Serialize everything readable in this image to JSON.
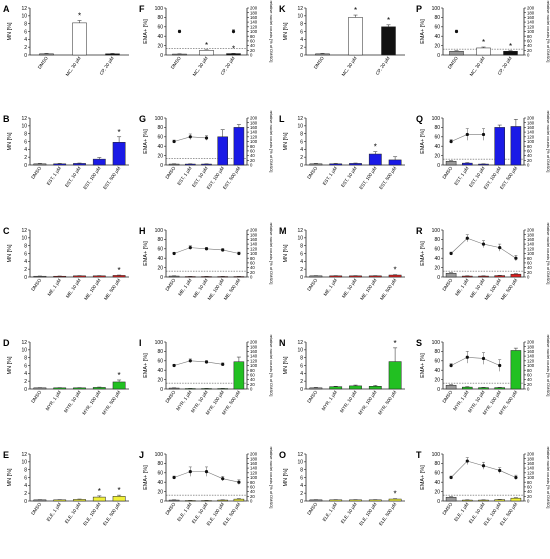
{
  "figure": {
    "mn_ylabel": "MN [%]",
    "ema_ylabel": "EMA+ [%]",
    "right_ylabel": "relative nuclei counts [% of DMSO]",
    "mn_ticks": [
      0,
      2,
      4,
      6,
      8,
      10,
      12
    ],
    "ema_ticks": [
      0,
      20,
      40,
      60,
      80,
      100
    ],
    "right_ticks": [
      0,
      20,
      40,
      60,
      80,
      100,
      120,
      140,
      160,
      180,
      200
    ],
    "colors": {
      "blue": "#1a1ae6",
      "red": "#e02020",
      "green": "#22c022",
      "yellow": "#f0f03a",
      "black": "#111111",
      "white": "#ffffff",
      "dmso": "#9a9a9a",
      "axis": "#222222"
    }
  },
  "chart_data": [
    {
      "panel": "A",
      "type": "bar",
      "metric": "MN",
      "categories": [
        "DMSO",
        "MC, 30 µM",
        "CP, 20 µM"
      ],
      "values": [
        0.3,
        8.2,
        0.3
      ],
      "errors": [
        0.1,
        0.6,
        0.1
      ],
      "colors": [
        "dmso",
        "white",
        "black"
      ],
      "stars": [
        1
      ],
      "ylim": [
        0,
        12
      ]
    },
    {
      "panel": "B",
      "type": "bar",
      "metric": "MN",
      "categories": [
        "DMSO",
        "EST, 1 µM",
        "EST, 10 µM",
        "EST, 100 µM",
        "EST, 500 µM"
      ],
      "values": [
        0.3,
        0.3,
        0.4,
        1.5,
        5.8
      ],
      "errors": [
        0.1,
        0.1,
        0.1,
        0.4,
        1.4
      ],
      "colors": [
        "dmso",
        "blue",
        "blue",
        "blue",
        "blue"
      ],
      "stars": [
        4
      ],
      "ylim": [
        0,
        12
      ]
    },
    {
      "panel": "C",
      "type": "bar",
      "metric": "MN",
      "categories": [
        "DMSO",
        "ME, 1 µM",
        "ME, 10 µM",
        "ME, 100 µM",
        "ME, 500 µM"
      ],
      "values": [
        0.2,
        0.2,
        0.3,
        0.3,
        0.4
      ],
      "errors": [
        0.05,
        0.05,
        0.05,
        0.05,
        0.1
      ],
      "colors": [
        "dmso",
        "red",
        "red",
        "red",
        "red"
      ],
      "stars": [
        4
      ],
      "ylim": [
        0,
        12
      ]
    },
    {
      "panel": "D",
      "type": "bar",
      "metric": "MN",
      "categories": [
        "DMSO",
        "MYR, 1 µM",
        "MYR, 10 µM",
        "MYR, 100 µM",
        "MYR, 500 µM"
      ],
      "values": [
        0.3,
        0.3,
        0.3,
        0.4,
        1.8
      ],
      "errors": [
        0.05,
        0.05,
        0.05,
        0.1,
        0.5
      ],
      "colors": [
        "dmso",
        "green",
        "green",
        "green",
        "green"
      ],
      "stars": [
        4
      ],
      "ylim": [
        0,
        12
      ]
    },
    {
      "panel": "E",
      "type": "bar",
      "metric": "MN",
      "categories": [
        "DMSO",
        "ELE, 1 µM",
        "ELE, 10 µM",
        "ELE, 100 µM",
        "ELE, 500 µM"
      ],
      "values": [
        0.3,
        0.3,
        0.4,
        1.0,
        1.2
      ],
      "errors": [
        0.05,
        0.05,
        0.1,
        0.3,
        0.3
      ],
      "colors": [
        "dmso",
        "yellow",
        "yellow",
        "yellow",
        "yellow"
      ],
      "stars": [
        3,
        4
      ],
      "ylim": [
        0,
        12
      ]
    },
    {
      "panel": "F",
      "type": "bar",
      "metric": "EMA",
      "categories": [
        "DMSO",
        "MC, 30 µM",
        "CP, 20 µM"
      ],
      "values": [
        2,
        10,
        3
      ],
      "errors": [
        0.5,
        1,
        0.5
      ],
      "colors": [
        "dmso",
        "white",
        "black"
      ],
      "stars": [
        1,
        2
      ],
      "ylim": [
        0,
        100
      ],
      "nuclei": [
        100,
        null,
        100
      ],
      "nuclei_err": [
        6,
        null,
        8
      ],
      "nuclei_line": false,
      "dashed": 28
    },
    {
      "panel": "G",
      "type": "bar",
      "metric": "EMA",
      "categories": [
        "DMSO",
        "EST, 1 µM",
        "EST, 10 µM",
        "EST, 100 µM",
        "EST, 500 µM"
      ],
      "values": [
        2,
        2,
        2,
        60,
        80
      ],
      "errors": [
        0.5,
        0.5,
        0.5,
        15,
        6
      ],
      "colors": [
        "dmso",
        "blue",
        "blue",
        "blue",
        "blue"
      ],
      "stars": [],
      "ylim": [
        0,
        100
      ],
      "nuclei": [
        100,
        120,
        115,
        null,
        null
      ],
      "nuclei_err": [
        6,
        12,
        10,
        null,
        null
      ],
      "nuclei_line": true,
      "dashed": 28
    },
    {
      "panel": "H",
      "type": "bar",
      "metric": "EMA",
      "categories": [
        "DMSO",
        "ME, 1 µM",
        "ME, 10 µM",
        "ME, 100 µM",
        "ME, 500 µM"
      ],
      "values": [
        2,
        1,
        1,
        1,
        1
      ],
      "errors": [
        0.5,
        0.3,
        0.3,
        0.3,
        0.3
      ],
      "colors": [
        "dmso",
        "red",
        "red",
        "red",
        "red"
      ],
      "stars": [],
      "ylim": [
        0,
        100
      ],
      "nuclei": [
        100,
        125,
        120,
        115,
        100
      ],
      "nuclei_err": [
        5,
        8,
        6,
        6,
        6
      ],
      "nuclei_line": true,
      "dashed": 25
    },
    {
      "panel": "I",
      "type": "bar",
      "metric": "EMA",
      "categories": [
        "DMSO",
        "MYR, 1 µM",
        "MYR, 10 µM",
        "MYR, 100 µM",
        "MYR, 500 µM"
      ],
      "values": [
        2,
        1,
        1,
        1,
        58
      ],
      "errors": [
        0.5,
        0.3,
        0.3,
        0.3,
        10
      ],
      "colors": [
        "dmso",
        "green",
        "green",
        "green",
        "green"
      ],
      "stars": [],
      "ylim": [
        0,
        100
      ],
      "nuclei": [
        100,
        120,
        115,
        105,
        null
      ],
      "nuclei_err": [
        5,
        8,
        6,
        6,
        null
      ],
      "nuclei_line": true,
      "dashed": 25
    },
    {
      "panel": "J",
      "type": "bar",
      "metric": "EMA",
      "categories": [
        "DMSO",
        "ELE, 1 µM",
        "ELE, 10 µM",
        "ELE, 100 µM",
        "ELE, 500 µM"
      ],
      "values": [
        2,
        1,
        1,
        2,
        4
      ],
      "errors": [
        0.5,
        0.3,
        0.3,
        0.5,
        1
      ],
      "colors": [
        "dmso",
        "yellow",
        "yellow",
        "yellow",
        "yellow"
      ],
      "stars": [],
      "ylim": [
        0,
        100
      ],
      "nuclei": [
        100,
        125,
        125,
        95,
        80
      ],
      "nuclei_err": [
        6,
        20,
        20,
        10,
        10
      ],
      "nuclei_line": true,
      "dashed": 25
    },
    {
      "panel": "K",
      "type": "bar",
      "metric": "MN",
      "categories": [
        "DMSO",
        "MC, 30 µM",
        "CP, 20 µM"
      ],
      "values": [
        0.3,
        9.6,
        7.2
      ],
      "errors": [
        0.1,
        0.6,
        0.5
      ],
      "colors": [
        "dmso",
        "white",
        "black"
      ],
      "stars": [
        1,
        2
      ],
      "ylim": [
        0,
        12
      ]
    },
    {
      "panel": "L",
      "type": "bar",
      "metric": "MN",
      "categories": [
        "DMSO",
        "EST, 1 µM",
        "EST, 10 µM",
        "EST, 100 µM",
        "EST, 500 µM"
      ],
      "values": [
        0.3,
        0.3,
        0.4,
        2.8,
        1.3
      ],
      "errors": [
        0.1,
        0.1,
        0.1,
        0.6,
        0.8
      ],
      "colors": [
        "dmso",
        "blue",
        "blue",
        "blue",
        "blue"
      ],
      "stars": [
        3
      ],
      "ylim": [
        0,
        12
      ]
    },
    {
      "panel": "M",
      "type": "bar",
      "metric": "MN",
      "categories": [
        "DMSO",
        "ME, 1 µM",
        "ME, 10 µM",
        "ME, 100 µM",
        "ME, 500 µM"
      ],
      "values": [
        0.3,
        0.3,
        0.3,
        0.3,
        0.5
      ],
      "errors": [
        0.05,
        0.05,
        0.05,
        0.05,
        0.1
      ],
      "colors": [
        "dmso",
        "red",
        "red",
        "red",
        "red"
      ],
      "stars": [
        4
      ],
      "ylim": [
        0,
        12
      ]
    },
    {
      "panel": "N",
      "type": "bar",
      "metric": "MN",
      "categories": [
        "DMSO",
        "MYR, 1 µM",
        "MYR, 10 µM",
        "MYR, 100 µM",
        "MYR, 500 µM"
      ],
      "values": [
        0.3,
        0.6,
        0.8,
        0.7,
        7.0
      ],
      "errors": [
        0.1,
        0.1,
        0.2,
        0.2,
        3.5
      ],
      "colors": [
        "dmso",
        "green",
        "green",
        "green",
        "green"
      ],
      "stars": [
        4
      ],
      "ylim": [
        0,
        12
      ]
    },
    {
      "panel": "O",
      "type": "bar",
      "metric": "MN",
      "categories": [
        "DMSO",
        "ELE, 1 µM",
        "ELE, 10 µM",
        "ELE, 100 µM",
        "ELE, 500 µM"
      ],
      "values": [
        0.3,
        0.3,
        0.3,
        0.3,
        0.5
      ],
      "errors": [
        0.05,
        0.05,
        0.05,
        0.05,
        0.1
      ],
      "colors": [
        "dmso",
        "yellow",
        "yellow",
        "yellow",
        "yellow"
      ],
      "stars": [
        4
      ],
      "ylim": [
        0,
        12
      ]
    },
    {
      "panel": "P",
      "type": "bar",
      "metric": "EMA",
      "categories": [
        "DMSO",
        "MC, 30 µM",
        "CP, 20 µM"
      ],
      "values": [
        8,
        15,
        8
      ],
      "errors": [
        1,
        2,
        1
      ],
      "colors": [
        "dmso",
        "white",
        "black"
      ],
      "stars": [
        1,
        2
      ],
      "ylim": [
        0,
        100
      ],
      "nuclei": [
        100,
        null,
        null
      ],
      "nuclei_err": [
        6,
        null,
        null
      ],
      "nuclei_line": false,
      "dashed": 25
    },
    {
      "panel": "Q",
      "type": "bar",
      "metric": "EMA",
      "categories": [
        "DMSO",
        "EST, 1 µM",
        "EST, 10 µM",
        "EST, 100 µM",
        "EST, 500 µM"
      ],
      "values": [
        8,
        4,
        2,
        80,
        82
      ],
      "errors": [
        1,
        1,
        0.5,
        5,
        15
      ],
      "colors": [
        "dmso",
        "blue",
        "blue",
        "blue",
        "blue"
      ],
      "stars": [],
      "ylim": [
        0,
        100
      ],
      "nuclei": [
        100,
        130,
        130,
        null,
        null
      ],
      "nuclei_err": [
        8,
        25,
        25,
        null,
        null
      ],
      "nuclei_line": true,
      "dashed": 25
    },
    {
      "panel": "R",
      "type": "bar",
      "metric": "EMA",
      "categories": [
        "DMSO",
        "ME, 1 µM",
        "ME, 10 µM",
        "ME, 100 µM",
        "ME, 500 µM"
      ],
      "values": [
        8,
        2,
        2,
        3,
        6
      ],
      "errors": [
        1,
        0.5,
        0.5,
        0.5,
        1
      ],
      "colors": [
        "dmso",
        "red",
        "red",
        "red",
        "red"
      ],
      "stars": [],
      "ylim": [
        0,
        100
      ],
      "nuclei": [
        100,
        165,
        140,
        125,
        80
      ],
      "nuclei_err": [
        6,
        15,
        15,
        15,
        12
      ],
      "nuclei_line": true,
      "dashed": 25
    },
    {
      "panel": "S",
      "type": "bar",
      "metric": "EMA",
      "categories": [
        "DMSO",
        "MYR, 1 µM",
        "MYR, 10 µM",
        "MYR, 100 µM",
        "MYR, 500 µM"
      ],
      "values": [
        8,
        4,
        3,
        3,
        82
      ],
      "errors": [
        1,
        1,
        0.5,
        0.5,
        5
      ],
      "colors": [
        "dmso",
        "green",
        "green",
        "green",
        "green"
      ],
      "stars": [],
      "ylim": [
        0,
        100
      ],
      "nuclei": [
        100,
        135,
        130,
        100,
        null
      ],
      "nuclei_err": [
        8,
        25,
        25,
        25,
        null
      ],
      "nuclei_line": true,
      "dashed": 25
    },
    {
      "panel": "T",
      "type": "bar",
      "metric": "EMA",
      "categories": [
        "DMSO",
        "ELE, 1 µM",
        "ELE, 10 µM",
        "ELE, 100 µM",
        "ELE, 500 µM"
      ],
      "values": [
        8,
        2,
        2,
        3,
        6
      ],
      "errors": [
        1,
        0.5,
        0.5,
        0.5,
        1
      ],
      "colors": [
        "dmso",
        "yellow",
        "yellow",
        "yellow",
        "yellow"
      ],
      "stars": [],
      "ylim": [
        0,
        100
      ],
      "nuclei": [
        100,
        170,
        150,
        130,
        100
      ],
      "nuclei_err": [
        6,
        15,
        15,
        12,
        10
      ],
      "nuclei_line": true,
      "dashed": 25
    }
  ]
}
